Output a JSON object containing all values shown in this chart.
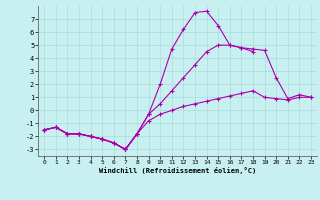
{
  "xlabel": "Windchill (Refroidissement éolien,°C)",
  "background_color": "#c8f0f0",
  "grid_color": "#b0dede",
  "line_color": "#aa00aa",
  "xlim": [
    -0.5,
    23.5
  ],
  "ylim": [
    -3.5,
    8.0
  ],
  "xticks": [
    0,
    1,
    2,
    3,
    4,
    5,
    6,
    7,
    8,
    9,
    10,
    11,
    12,
    13,
    14,
    15,
    16,
    17,
    18,
    19,
    20,
    21,
    22,
    23
  ],
  "yticks": [
    -3,
    -2,
    -1,
    0,
    1,
    2,
    3,
    4,
    5,
    6,
    7
  ],
  "series": [
    {
      "x": [
        0,
        1,
        2,
        3,
        4,
        5,
        6,
        7,
        8,
        9,
        10,
        11,
        12,
        13,
        14,
        15,
        16,
        17,
        18,
        19,
        20,
        21,
        22,
        23
      ],
      "y": [
        -1.5,
        -1.3,
        -1.8,
        -1.8,
        -2.0,
        -2.2,
        -2.5,
        -3.0,
        -1.8,
        null,
        null,
        null,
        null,
        null,
        null,
        null,
        null,
        null,
        null,
        null,
        null,
        null,
        null,
        null
      ]
    },
    {
      "x": [
        0,
        1,
        2,
        3,
        4,
        5,
        6,
        7,
        8,
        9,
        10,
        11,
        12,
        13,
        14,
        15,
        16,
        17,
        18,
        19,
        20,
        21,
        22,
        23
      ],
      "y": [
        -1.5,
        -1.3,
        -1.8,
        -1.8,
        -2.0,
        -2.2,
        -2.5,
        -3.0,
        -1.8,
        -0.3,
        2.0,
        4.7,
        6.2,
        7.5,
        7.6,
        6.5,
        5.0,
        4.8,
        4.5,
        null,
        null,
        null,
        null,
        null
      ]
    },
    {
      "x": [
        0,
        1,
        2,
        3,
        4,
        5,
        6,
        7,
        8,
        9,
        10,
        11,
        12,
        13,
        14,
        15,
        16,
        17,
        18,
        19,
        20,
        21,
        22,
        23
      ],
      "y": [
        -1.5,
        -1.3,
        -1.8,
        -1.8,
        -2.0,
        -2.2,
        -2.5,
        -3.0,
        -1.8,
        -0.3,
        0.5,
        1.5,
        2.5,
        3.5,
        4.5,
        5.0,
        5.0,
        4.8,
        4.7,
        4.6,
        2.5,
        0.9,
        1.2,
        1.0
      ]
    },
    {
      "x": [
        0,
        1,
        2,
        3,
        4,
        5,
        6,
        7,
        8,
        9,
        10,
        11,
        12,
        13,
        14,
        15,
        16,
        17,
        18,
        19,
        20,
        21,
        22,
        23
      ],
      "y": [
        -1.5,
        -1.3,
        -1.8,
        -1.8,
        -2.0,
        -2.2,
        -2.5,
        -3.0,
        -1.8,
        -0.8,
        -0.3,
        0.0,
        0.3,
        0.5,
        0.7,
        0.9,
        1.1,
        1.3,
        1.5,
        1.0,
        0.9,
        0.8,
        1.0,
        1.0
      ]
    }
  ]
}
